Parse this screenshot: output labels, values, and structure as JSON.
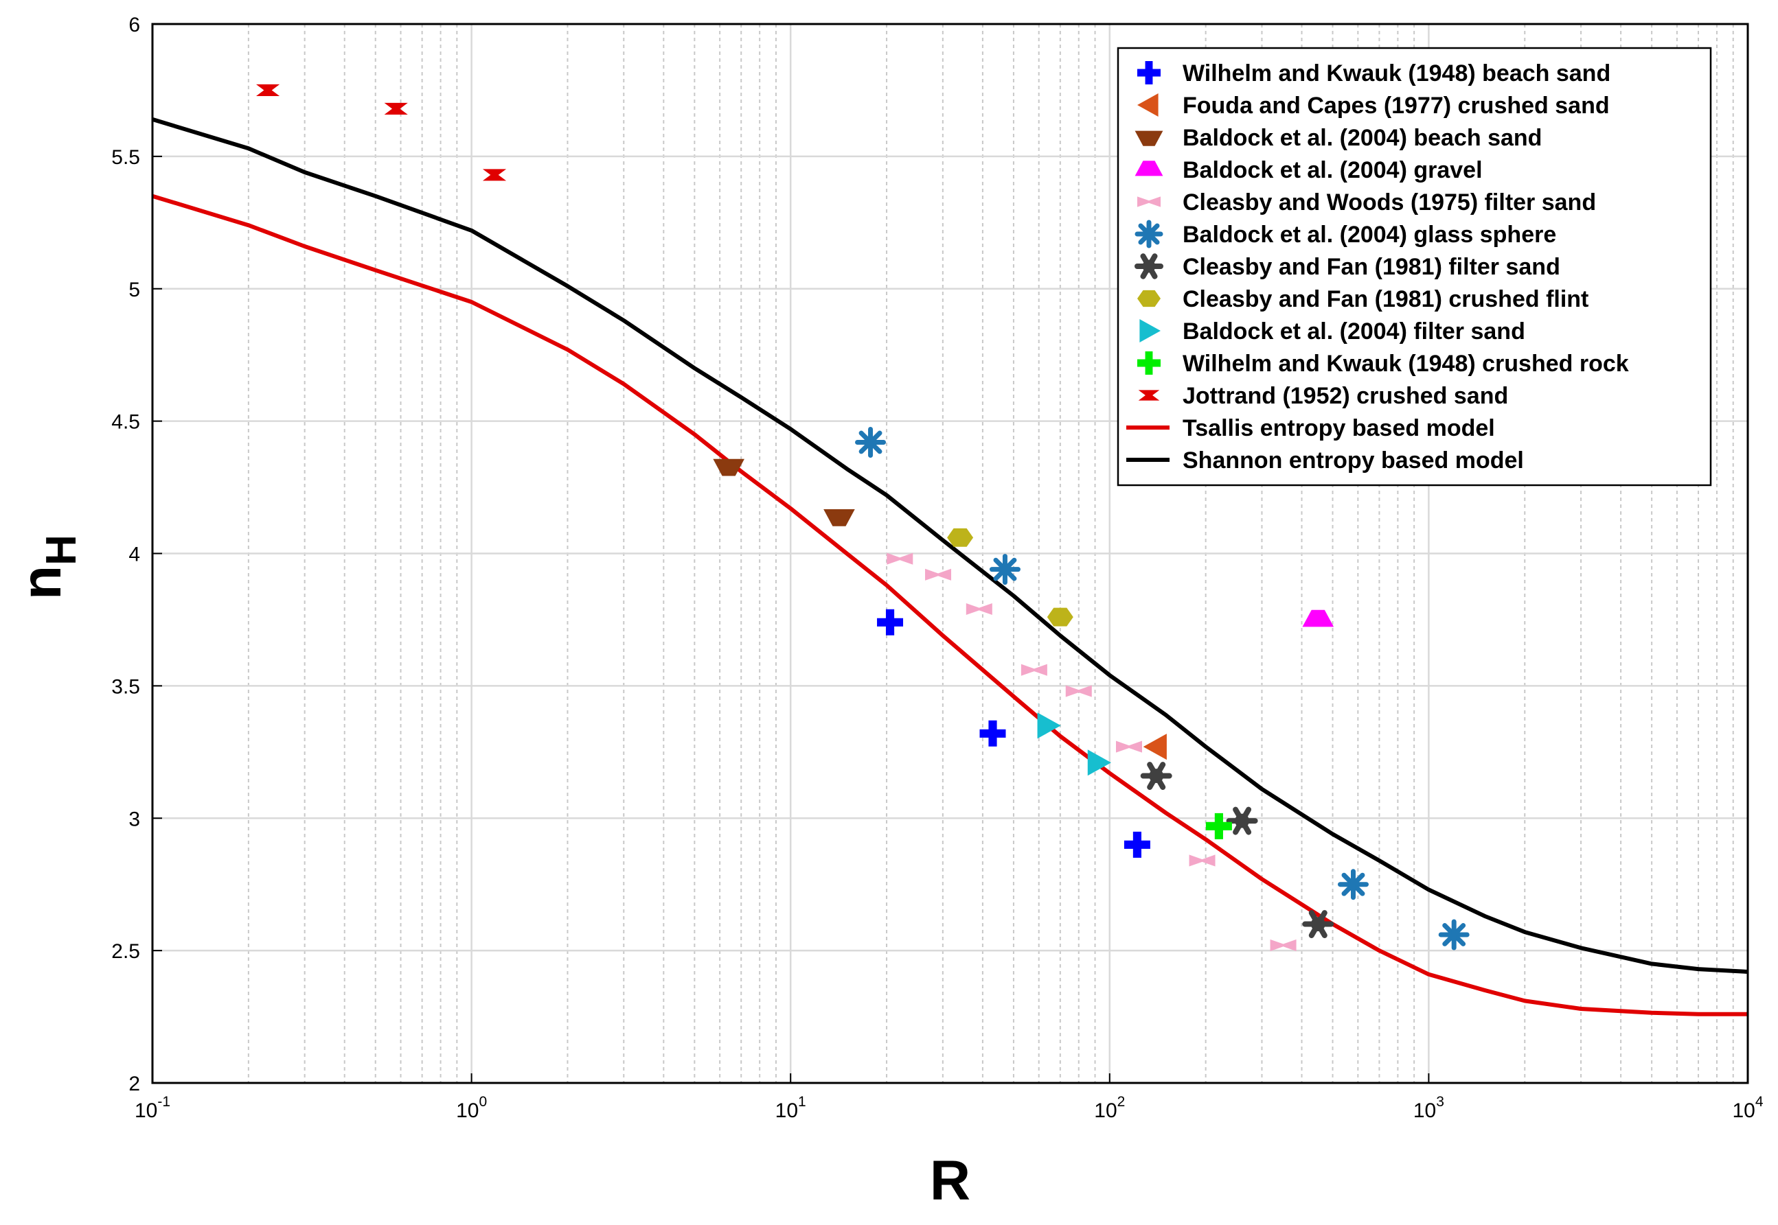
{
  "chart_data": {
    "type": "scatter",
    "title": "",
    "xlabel": "R",
    "ylabel_main": "n",
    "ylabel_sub": "H",
    "xscale": "log",
    "xlim": [
      0.1,
      10000
    ],
    "ylim": [
      2,
      6
    ],
    "grid": true,
    "legend_position": "top-right",
    "x_ticks": [
      {
        "value": 0.1,
        "base": "10",
        "exp": "-1"
      },
      {
        "value": 1,
        "base": "10",
        "exp": "0"
      },
      {
        "value": 10,
        "base": "10",
        "exp": "1"
      },
      {
        "value": 100,
        "base": "10",
        "exp": "2"
      },
      {
        "value": 1000,
        "base": "10",
        "exp": "3"
      },
      {
        "value": 10000,
        "base": "10",
        "exp": "4"
      }
    ],
    "y_ticks": [
      {
        "value": 2,
        "label": "2"
      },
      {
        "value": 2.5,
        "label": "2.5"
      },
      {
        "value": 3,
        "label": "3"
      },
      {
        "value": 3.5,
        "label": "3.5"
      },
      {
        "value": 4,
        "label": "4"
      },
      {
        "value": 4.5,
        "label": "4.5"
      },
      {
        "value": 5,
        "label": "5"
      },
      {
        "value": 5.5,
        "label": "5.5"
      },
      {
        "value": 6,
        "label": "6"
      }
    ],
    "series": [
      {
        "name": "Wilhelm and Kwauk (1948) beach sand",
        "marker": "plus",
        "color": "#0000ff",
        "points": [
          [
            20.5,
            3.74
          ],
          [
            43,
            3.32
          ],
          [
            122,
            2.9
          ]
        ]
      },
      {
        "name": "Fouda and Capes (1977) crushed sand",
        "marker": "triangle-left",
        "color": "#d95319",
        "points": [
          [
            140,
            3.27
          ]
        ]
      },
      {
        "name": "Baldock et al. (2004) beach sand",
        "marker": "triangle-down",
        "color": "#8b3a0f",
        "points": [
          [
            6.4,
            4.33
          ],
          [
            14.2,
            4.14
          ]
        ]
      },
      {
        "name": "Baldock et al. (2004) gravel",
        "marker": "triangle-up",
        "color": "#ff00ff",
        "points": [
          [
            450,
            3.75
          ]
        ]
      },
      {
        "name": "Cleasby and Woods (1975) filter sand",
        "marker": "bowtie",
        "color": "#f4a6c8",
        "points": [
          [
            22,
            3.98
          ],
          [
            29,
            3.92
          ],
          [
            39,
            3.79
          ],
          [
            58,
            3.56
          ],
          [
            80,
            3.48
          ],
          [
            115,
            3.27
          ],
          [
            195,
            2.84
          ],
          [
            350,
            2.52
          ]
        ]
      },
      {
        "name": "Baldock et al. (2004) glass sphere",
        "marker": "asterisk",
        "color": "#1f77b4",
        "points": [
          [
            17.8,
            4.42
          ],
          [
            47,
            3.94
          ],
          [
            580,
            2.75
          ],
          [
            1200,
            2.56
          ]
        ]
      },
      {
        "name": "Cleasby and Fan (1981) filter sand",
        "marker": "hex-star",
        "color": "#404040",
        "points": [
          [
            140,
            3.16
          ],
          [
            260,
            2.99
          ],
          [
            450,
            2.6
          ]
        ]
      },
      {
        "name": "Cleasby and Fan (1981) crushed flint",
        "marker": "hexagon",
        "color": "#bdb31a",
        "points": [
          [
            34,
            4.06
          ],
          [
            70,
            3.76
          ]
        ]
      },
      {
        "name": "Baldock et al. (2004) filter sand",
        "marker": "triangle-right",
        "color": "#17becf",
        "points": [
          [
            64,
            3.35
          ],
          [
            92,
            3.21
          ]
        ]
      },
      {
        "name": "Wilhelm and Kwauk (1948) crushed rock",
        "marker": "plus",
        "color": "#00ee00",
        "points": [
          [
            220,
            2.97
          ]
        ]
      },
      {
        "name": "Jottrand (1952) crushed sand",
        "marker": "hourglass",
        "color": "#e00000",
        "points": [
          [
            0.23,
            5.75
          ],
          [
            0.58,
            5.68
          ],
          [
            1.18,
            5.43
          ]
        ]
      }
    ],
    "lines": [
      {
        "name": "Tsallis entropy based model",
        "color": "#e00000",
        "points": [
          [
            0.1,
            5.35
          ],
          [
            0.2,
            5.24
          ],
          [
            0.3,
            5.16
          ],
          [
            0.5,
            5.07
          ],
          [
            1,
            4.95
          ],
          [
            2,
            4.77
          ],
          [
            3,
            4.64
          ],
          [
            5,
            4.45
          ],
          [
            7,
            4.31
          ],
          [
            10,
            4.17
          ],
          [
            15,
            4.0
          ],
          [
            20,
            3.88
          ],
          [
            30,
            3.69
          ],
          [
            50,
            3.46
          ],
          [
            70,
            3.31
          ],
          [
            100,
            3.17
          ],
          [
            150,
            3.02
          ],
          [
            200,
            2.92
          ],
          [
            300,
            2.77
          ],
          [
            500,
            2.6
          ],
          [
            700,
            2.5
          ],
          [
            1000,
            2.41
          ],
          [
            1500,
            2.35
          ],
          [
            2000,
            2.31
          ],
          [
            3000,
            2.28
          ],
          [
            5000,
            2.265
          ],
          [
            7000,
            2.26
          ],
          [
            10000,
            2.26
          ]
        ]
      },
      {
        "name": "Shannon entropy based model",
        "color": "#000000",
        "points": [
          [
            0.1,
            5.64
          ],
          [
            0.2,
            5.53
          ],
          [
            0.3,
            5.44
          ],
          [
            0.5,
            5.35
          ],
          [
            1,
            5.22
          ],
          [
            2,
            5.01
          ],
          [
            3,
            4.88
          ],
          [
            5,
            4.7
          ],
          [
            7,
            4.59
          ],
          [
            10,
            4.47
          ],
          [
            15,
            4.32
          ],
          [
            20,
            4.22
          ],
          [
            30,
            4.05
          ],
          [
            50,
            3.84
          ],
          [
            70,
            3.69
          ],
          [
            100,
            3.54
          ],
          [
            150,
            3.39
          ],
          [
            200,
            3.27
          ],
          [
            300,
            3.11
          ],
          [
            500,
            2.94
          ],
          [
            700,
            2.84
          ],
          [
            1000,
            2.73
          ],
          [
            1500,
            2.63
          ],
          [
            2000,
            2.57
          ],
          [
            3000,
            2.51
          ],
          [
            5000,
            2.45
          ],
          [
            7000,
            2.43
          ],
          [
            10000,
            2.42
          ]
        ]
      }
    ]
  }
}
